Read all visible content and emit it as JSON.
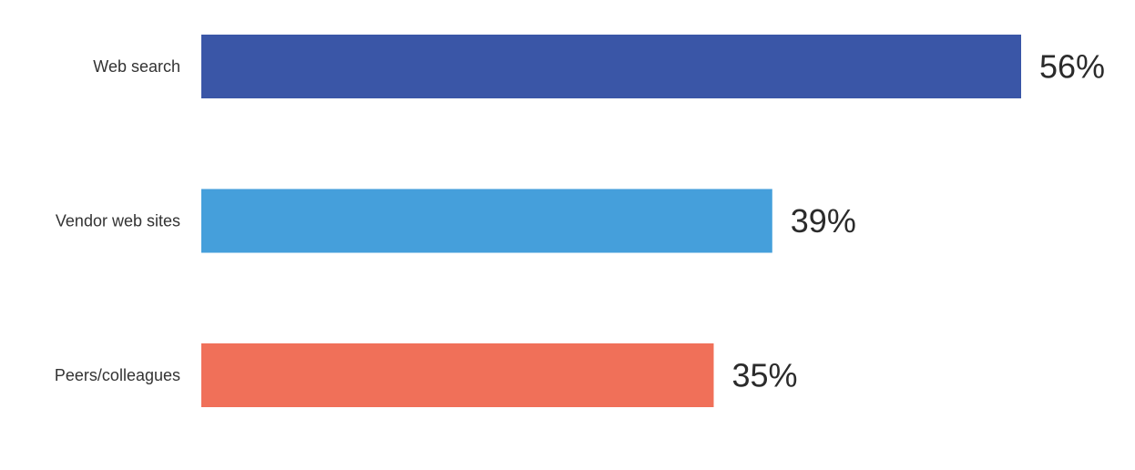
{
  "chart_data": {
    "type": "bar",
    "orientation": "horizontal",
    "categories": [
      "Web search",
      "Vendor web sites",
      "Peers/colleagues"
    ],
    "values": [
      56,
      39,
      35
    ],
    "value_labels": [
      "56%",
      "39%",
      "35%"
    ],
    "colors": [
      "#3a56a7",
      "#459fdb",
      "#f07059"
    ],
    "unit": "%",
    "xlim": [
      0,
      56
    ],
    "grid": false,
    "legend": "none"
  }
}
